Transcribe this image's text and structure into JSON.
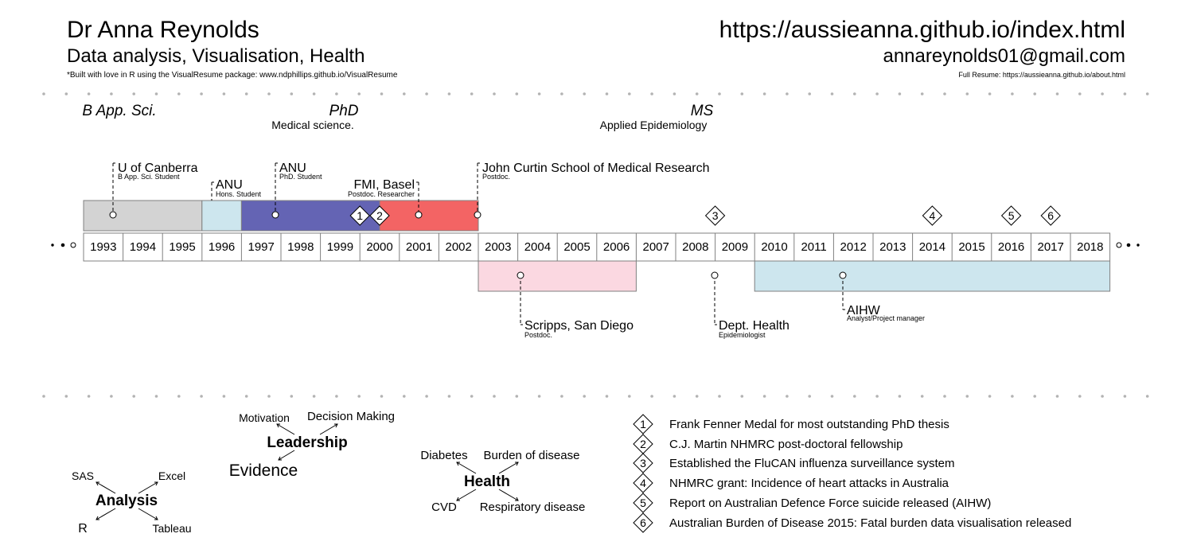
{
  "header": {
    "name": "Dr Anna Reynolds",
    "tagline": "Data analysis, Visualisation, Health",
    "credit": "*Built with love in R using the VisualResume package: www.ndphillips.github.io/VisualResume",
    "url": "https://aussieanna.github.io/index.html",
    "email": "annareynolds01@gmail.com",
    "full_resume": "Full Resume: https://aussieanna.github.io/about.html"
  },
  "degrees": [
    {
      "title": "B App. Sci.",
      "subtitle": ""
    },
    {
      "title": "PhD",
      "subtitle": "Medical science."
    },
    {
      "title": "MS",
      "subtitle": "Applied Epidemiology"
    }
  ],
  "timeline": {
    "years": [
      1993,
      1994,
      1995,
      1996,
      1997,
      1998,
      1999,
      2000,
      2001,
      2002,
      2003,
      2004,
      2005,
      2006,
      2007,
      2008,
      2009,
      2010,
      2011,
      2012,
      2013,
      2014,
      2015,
      2016,
      2017,
      2018
    ],
    "start": 1993,
    "end": 2019
  },
  "colors": {
    "gray": "#d3d3d3",
    "lightblue": "#cde6ee",
    "blue": "#6464b4",
    "red": "#f36464",
    "pink": "#fbd8e1"
  },
  "events": [
    {
      "title": "U of Canberra",
      "role": "B App. Sci. Student",
      "start": 1993,
      "end": 1996,
      "side": "top",
      "color": "gray"
    },
    {
      "title": "ANU",
      "role": "Hons. Student",
      "start": 1996,
      "end": 1997,
      "side": "top",
      "color": "lightblue"
    },
    {
      "title": "ANU",
      "role": "PhD. Student",
      "start": 1997,
      "end": 2000.5,
      "side": "top",
      "color": "blue"
    },
    {
      "title": "FMI, Basel",
      "role": "Postdoc. Researcher",
      "start": 2000.5,
      "end": 2003,
      "side": "top",
      "color": "red"
    },
    {
      "title": "John Curtin School of Medical Research",
      "role": "Postdoc.",
      "start": 2003,
      "end": 2003,
      "side": "top",
      "color": ""
    },
    {
      "title": "Scripps, San Diego",
      "role": "Postdoc.",
      "start": 2003,
      "end": 2007,
      "side": "bottom",
      "color": "pink"
    },
    {
      "title": "Dept. Health",
      "role": "Epidemiologist",
      "start": 2009,
      "end": 2009,
      "side": "bottom",
      "color": ""
    },
    {
      "title": "AIHW",
      "role": "Analyst/Project manager",
      "start": 2010,
      "end": 2019,
      "side": "bottom",
      "color": "lightblue"
    }
  ],
  "milestones": [
    {
      "number": "1",
      "year": 2000,
      "text": "Frank Fenner Medal for most outstanding PhD thesis"
    },
    {
      "number": "2",
      "year": 2000.5,
      "text": "C.J. Martin NHMRC post-doctoral fellowship"
    },
    {
      "number": "3",
      "year": 2009,
      "text": "Established the FluCAN influenza surveillance system"
    },
    {
      "number": "4",
      "year": 2014.5,
      "text": "NHMRC grant: Incidence of heart attacks in Australia"
    },
    {
      "number": "5",
      "year": 2016.5,
      "text": "Report on Australian Defence Force suicide released (AIHW)"
    },
    {
      "number": "6",
      "year": 2017.5,
      "text": "Australian Burden of Disease 2015: Fatal burden data visualisation released"
    }
  ],
  "interests": [
    {
      "center": "Analysis",
      "items": [
        "SAS",
        "Excel",
        "R",
        "Tableau"
      ]
    },
    {
      "center": "Leadership",
      "items": [
        "Motivation",
        "Decision Making",
        "Evidence"
      ]
    },
    {
      "center": "Health",
      "items": [
        "Diabetes",
        "Burden of disease",
        "CVD",
        "Respiratory disease"
      ]
    }
  ]
}
